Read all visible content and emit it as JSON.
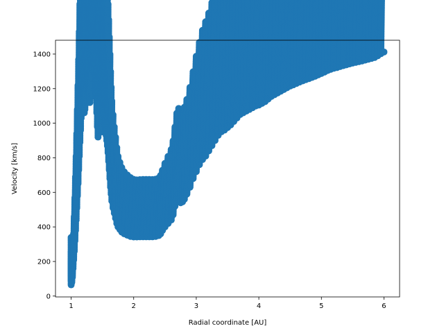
{
  "chart_data": {
    "type": "scatter",
    "xlabel": "Radial coordinate [AU]",
    "ylabel": "Velocity [km/s]",
    "xlim": [
      0.75,
      6.25
    ],
    "ylim": [
      -5,
      1480
    ],
    "xticks": [
      1,
      2,
      3,
      4,
      5,
      6
    ],
    "yticks": [
      0,
      200,
      400,
      600,
      800,
      1000,
      1200,
      1400
    ],
    "grid": false,
    "legend": "none",
    "marker_color": "#1f77b4",
    "series": [
      {
        "points": [
          [
            1.0,
            65
          ],
          [
            1.0,
            90
          ],
          [
            1.0,
            120
          ],
          [
            1.0,
            150
          ],
          [
            1.0,
            200
          ],
          [
            1.01,
            80
          ],
          [
            1.02,
            110
          ],
          [
            1.03,
            160
          ],
          [
            1.04,
            210
          ],
          [
            1.05,
            260
          ],
          [
            1.06,
            320
          ],
          [
            1.07,
            380
          ],
          [
            1.08,
            440
          ],
          [
            1.09,
            510
          ],
          [
            1.1,
            580
          ],
          [
            1.11,
            650
          ],
          [
            1.12,
            730
          ],
          [
            1.13,
            810
          ],
          [
            1.14,
            890
          ],
          [
            1.15,
            960
          ],
          [
            1.16,
            1030
          ],
          [
            1.17,
            1090
          ],
          [
            1.18,
            1150
          ],
          [
            1.19,
            1170
          ],
          [
            1.2,
            1120
          ],
          [
            1.21,
            1060
          ],
          [
            1.22,
            1080
          ],
          [
            1.23,
            1110
          ],
          [
            1.24,
            1150
          ],
          [
            1.25,
            1200
          ],
          [
            1.26,
            1240
          ],
          [
            1.27,
            1260
          ],
          [
            1.28,
            1220
          ],
          [
            1.29,
            1170
          ],
          [
            1.3,
            1120
          ],
          [
            1.31,
            1150
          ],
          [
            1.32,
            1210
          ],
          [
            1.33,
            1260
          ],
          [
            1.34,
            1300
          ],
          [
            1.35,
            1320
          ],
          [
            1.36,
            1335
          ],
          [
            1.37,
            1320
          ],
          [
            1.38,
            1290
          ],
          [
            1.39,
            1230
          ],
          [
            1.4,
            1150
          ],
          [
            1.41,
            1060
          ],
          [
            1.42,
            980
          ],
          [
            1.43,
            920
          ],
          [
            1.44,
            940
          ],
          [
            1.45,
            1010
          ],
          [
            1.46,
            1070
          ],
          [
            1.47,
            1090
          ],
          [
            1.48,
            1060
          ],
          [
            1.49,
            1000
          ],
          [
            1.5,
            950
          ],
          [
            1.51,
            1010
          ],
          [
            1.52,
            1050
          ],
          [
            1.53,
            1040
          ],
          [
            1.54,
            1000
          ],
          [
            1.55,
            960
          ],
          [
            1.56,
            930
          ],
          [
            1.57,
            900
          ],
          [
            1.58,
            870
          ],
          [
            1.59,
            830
          ],
          [
            1.6,
            780
          ],
          [
            1.61,
            730
          ],
          [
            1.62,
            680
          ],
          [
            1.63,
            630
          ],
          [
            1.64,
            590
          ],
          [
            1.65,
            550
          ],
          [
            1.67,
            510
          ],
          [
            1.69,
            480
          ],
          [
            1.71,
            450
          ],
          [
            1.73,
            420
          ],
          [
            1.75,
            400
          ],
          [
            1.78,
            385
          ],
          [
            1.81,
            370
          ],
          [
            1.85,
            360
          ],
          [
            1.9,
            352
          ],
          [
            1.95,
            345
          ],
          [
            2.0,
            342
          ],
          [
            2.05,
            342
          ],
          [
            2.1,
            343
          ],
          [
            2.15,
            343
          ],
          [
            2.2,
            343
          ],
          [
            2.25,
            343
          ],
          [
            2.3,
            343
          ],
          [
            2.35,
            345
          ],
          [
            2.4,
            350
          ],
          [
            2.43,
            360
          ],
          [
            2.46,
            380
          ],
          [
            2.5,
            400
          ],
          [
            2.55,
            420
          ],
          [
            2.6,
            440
          ],
          [
            2.63,
            470
          ],
          [
            2.66,
            520
          ],
          [
            2.69,
            550
          ],
          [
            2.72,
            548
          ],
          [
            2.75,
            540
          ],
          [
            2.78,
            545
          ],
          [
            2.81,
            560
          ],
          [
            2.85,
            590
          ],
          [
            2.9,
            630
          ],
          [
            2.95,
            680
          ],
          [
            3.0,
            720
          ],
          [
            3.05,
            760
          ],
          [
            3.1,
            790
          ],
          [
            3.15,
            810
          ],
          [
            3.2,
            840
          ],
          [
            3.25,
            870
          ],
          [
            3.3,
            900
          ],
          [
            3.35,
            930
          ],
          [
            3.4,
            950
          ],
          [
            3.45,
            960
          ],
          [
            3.5,
            975
          ],
          [
            3.55,
            990
          ],
          [
            3.6,
            1010
          ],
          [
            3.65,
            1030
          ],
          [
            3.7,
            1050
          ],
          [
            3.75,
            1060
          ],
          [
            3.8,
            1070
          ],
          [
            3.85,
            1080
          ],
          [
            3.9,
            1090
          ],
          [
            3.95,
            1100
          ],
          [
            4.0,
            1105
          ],
          [
            4.05,
            1115
          ],
          [
            4.1,
            1125
          ],
          [
            4.15,
            1140
          ],
          [
            4.2,
            1155
          ],
          [
            4.25,
            1165
          ],
          [
            4.3,
            1175
          ],
          [
            4.35,
            1185
          ],
          [
            4.4,
            1195
          ],
          [
            4.45,
            1205
          ],
          [
            4.5,
            1215
          ],
          [
            4.55,
            1222
          ],
          [
            4.6,
            1230
          ],
          [
            4.65,
            1238
          ],
          [
            4.7,
            1245
          ],
          [
            4.75,
            1252
          ],
          [
            4.8,
            1258
          ],
          [
            4.85,
            1265
          ],
          [
            4.9,
            1272
          ],
          [
            4.95,
            1280
          ],
          [
            5.0,
            1288
          ],
          [
            5.05,
            1296
          ],
          [
            5.1,
            1305
          ],
          [
            5.15,
            1312
          ],
          [
            5.2,
            1318
          ],
          [
            5.25,
            1322
          ],
          [
            5.3,
            1328
          ],
          [
            5.35,
            1333
          ],
          [
            5.4,
            1338
          ],
          [
            5.45,
            1343
          ],
          [
            5.5,
            1348
          ],
          [
            5.55,
            1352
          ],
          [
            5.6,
            1356
          ],
          [
            5.65,
            1360
          ],
          [
            5.7,
            1365
          ],
          [
            5.75,
            1370
          ],
          [
            5.8,
            1375
          ],
          [
            5.85,
            1380
          ],
          [
            5.9,
            1390
          ],
          [
            5.95,
            1402
          ],
          [
            6.0,
            1412
          ]
        ]
      }
    ]
  }
}
